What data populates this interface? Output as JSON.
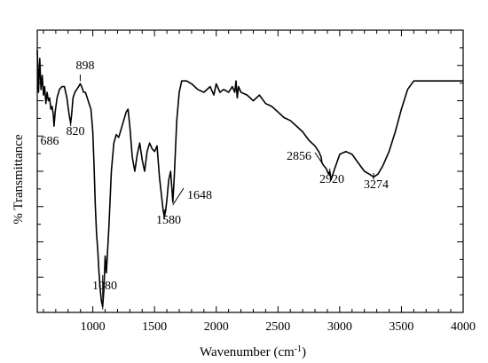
{
  "chart_data": {
    "type": "line",
    "xlabel": "Wavenumber (cm",
    "xlabel_sup": "-1",
    "xlabel_end": ")",
    "ylabel": "% Transmittance",
    "xlim": [
      550,
      4000
    ],
    "ylim": [
      0,
      100
    ],
    "x_ticks": [
      1000,
      1500,
      2000,
      2500,
      3000,
      3500,
      4000
    ],
    "x_tick_labels": [
      "1000",
      "1500",
      "2000",
      "2500",
      "3000",
      "3500",
      "4000"
    ],
    "y_tick_labels_shown": false,
    "grid": false,
    "series": [
      {
        "x": [
          550,
          560,
          570,
          580,
          590,
          600,
          610,
          620,
          630,
          640,
          650,
          660,
          670,
          680,
          686,
          695,
          710,
          730,
          750,
          770,
          790,
          805,
          812,
          820,
          828,
          840,
          855,
          870,
          885,
          898,
          910,
          925,
          940,
          955,
          970,
          985,
          1000,
          1010,
          1020,
          1030,
          1040,
          1050,
          1060,
          1070,
          1080,
          1090,
          1100,
          1110,
          1120,
          1130,
          1150,
          1170,
          1190,
          1210,
          1230,
          1250,
          1270,
          1285,
          1300,
          1320,
          1340,
          1360,
          1380,
          1400,
          1420,
          1440,
          1460,
          1480,
          1500,
          1520,
          1540,
          1560,
          1570,
          1580,
          1590,
          1600,
          1615,
          1630,
          1640,
          1648,
          1660,
          1680,
          1700,
          1720,
          1740,
          1760,
          1800,
          1850,
          1900,
          1950,
          1980,
          2000,
          2030,
          2060,
          2100,
          2130,
          2150,
          2160,
          2170,
          2180,
          2200,
          2250,
          2300,
          2350,
          2400,
          2450,
          2500,
          2550,
          2600,
          2650,
          2700,
          2750,
          2800,
          2830,
          2850,
          2856,
          2870,
          2890,
          2910,
          2920,
          2930,
          2960,
          3000,
          3050,
          3100,
          3150,
          3200,
          3240,
          3274,
          3310,
          3350,
          3400,
          3450,
          3500,
          3550,
          3600,
          3650,
          3700,
          3750,
          3800,
          3850,
          3900,
          3950,
          4000
        ],
        "y": [
          93,
          78,
          90,
          79,
          84,
          77,
          80,
          74,
          78,
          75,
          76,
          72,
          73,
          70,
          66,
          71,
          76,
          79,
          80,
          80,
          76,
          71,
          69,
          67,
          70,
          76,
          78,
          79,
          80,
          81,
          80,
          78,
          78,
          76,
          74,
          72,
          64,
          52,
          38,
          28,
          22,
          14,
          8,
          4,
          2,
          8,
          20,
          14,
          22,
          30,
          50,
          60,
          63,
          62,
          65,
          68,
          71,
          72,
          66,
          55,
          50,
          56,
          60,
          54,
          50,
          57,
          60,
          58,
          57,
          59,
          48,
          40,
          36,
          34,
          36,
          40,
          47,
          50,
          44,
          39,
          48,
          68,
          78,
          82,
          82,
          82,
          81,
          79,
          78,
          80,
          77,
          81,
          78,
          79,
          78,
          80,
          78,
          82,
          76,
          80,
          78,
          77,
          75,
          77,
          74,
          73,
          71,
          69,
          68,
          66,
          64,
          61,
          59,
          57,
          55,
          53,
          52,
          51,
          49,
          50,
          47,
          51,
          56,
          57,
          56,
          53,
          50,
          49,
          48,
          49,
          52,
          57,
          64,
          72,
          79,
          82,
          82,
          82,
          82,
          82,
          82,
          82,
          82,
          82
        ]
      }
    ],
    "annotations": [
      {
        "label": "686",
        "x": 686
      },
      {
        "label": "820",
        "x": 820
      },
      {
        "label": "898",
        "x": 898
      },
      {
        "label": "1080",
        "x": 1080
      },
      {
        "label": "1580",
        "x": 1580
      },
      {
        "label": "1648",
        "x": 1648
      },
      {
        "label": "2856",
        "x": 2856
      },
      {
        "label": "2920",
        "x": 2920
      },
      {
        "label": "3274",
        "x": 3274
      }
    ]
  }
}
